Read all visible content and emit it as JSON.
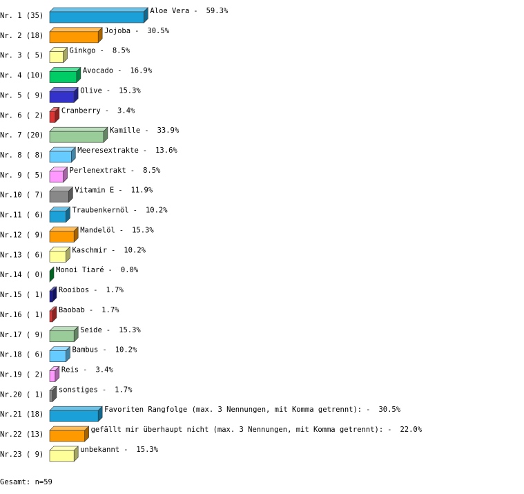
{
  "chart_data": {
    "type": "bar",
    "orientation": "horizontal",
    "row_labels": [
      "Nr. 1 (35)",
      "Nr. 2 (18)",
      "Nr. 3 ( 5)",
      "Nr. 4 (10)",
      "Nr. 5 ( 9)",
      "Nr. 6 ( 2)",
      "Nr. 7 (20)",
      "Nr. 8 ( 8)",
      "Nr. 9 ( 5)",
      "Nr.10 ( 7)",
      "Nr.11 ( 6)",
      "Nr.12 ( 9)",
      "Nr.13 ( 6)",
      "Nr.14 ( 0)",
      "Nr.15 ( 1)",
      "Nr.16 ( 1)",
      "Nr.17 ( 9)",
      "Nr.18 ( 6)",
      "Nr.19 ( 2)",
      "Nr.20 ( 1)",
      "Nr.21 (18)",
      "Nr.22 (13)",
      "Nr.23 ( 9)"
    ],
    "categories": [
      "Aloe Vera",
      "Jojoba",
      "Ginkgo",
      "Avocado",
      "Olive",
      "Cranberry",
      "Kamille",
      "Meeresextrakte",
      "Perlenextrakt",
      "Vitamin E",
      "Traubenkernöl",
      "Mandelöl",
      "Kaschmir",
      "Monoi Tiaré",
      "Rooibos",
      "Baobab",
      "Seide",
      "Bambus",
      "Reis",
      "sonstiges",
      "Favoriten Rangfolge (max. 3 Nennungen, mit Komma getrennt):",
      "gefällt mir überhaupt nicht (max. 3 Nennungen, mit Komma getrennt):",
      "unbekannt"
    ],
    "separator": "-",
    "values": [
      59.3,
      30.5,
      8.5,
      16.9,
      15.3,
      3.4,
      33.9,
      13.6,
      8.5,
      11.9,
      10.2,
      15.3,
      10.2,
      0.0,
      1.7,
      1.7,
      15.3,
      10.2,
      3.4,
      1.7,
      30.5,
      22.0,
      15.3
    ],
    "value_labels": [
      "59.3%",
      "30.5%",
      "8.5%",
      "16.9%",
      "15.3%",
      "3.4%",
      "33.9%",
      "13.6%",
      "8.5%",
      "11.9%",
      "10.2%",
      "15.3%",
      "10.2%",
      "0.0%",
      "1.7%",
      "1.7%",
      "15.3%",
      "10.2%",
      "3.4%",
      "1.7%",
      "30.5%",
      "22.0%",
      "15.3%"
    ],
    "colors": [
      "#1ba0d8",
      "#ff9900",
      "#ffff99",
      "#00cc66",
      "#3333cc",
      "#dd3333",
      "#99cc99",
      "#66ccff",
      "#ff99ff",
      "#888888",
      "#1ba0d8",
      "#ff9900",
      "#ffff99",
      "#009933",
      "#1a1a99",
      "#dd3333",
      "#99cc99",
      "#66ccff",
      "#ff99ff",
      "#888888",
      "#1ba0d8",
      "#ff9900",
      "#ffff99"
    ],
    "footer": "Gesamt: n=59"
  }
}
